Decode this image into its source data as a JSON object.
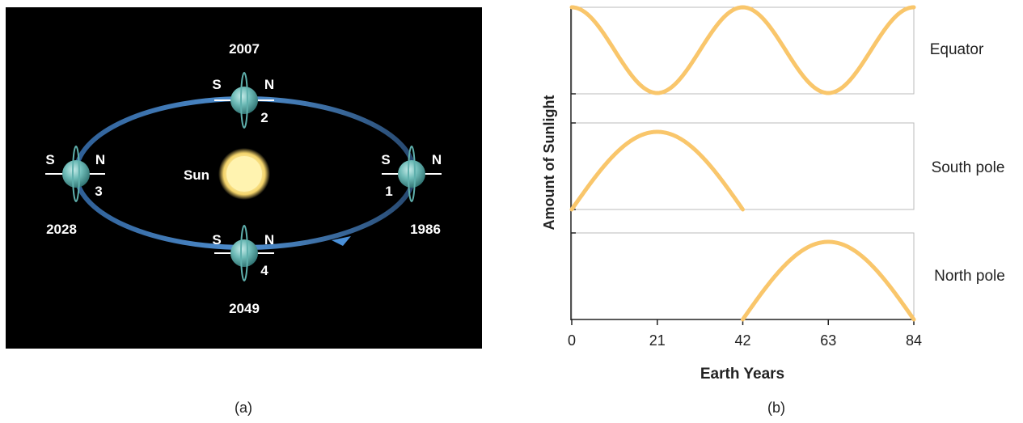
{
  "panel_a": {
    "caption": "(a)",
    "sun_label": "Sun",
    "positions": [
      {
        "number": "1",
        "year": "1986",
        "south": "S",
        "north": "N"
      },
      {
        "number": "2",
        "year": "2007",
        "south": "S",
        "north": "N"
      },
      {
        "number": "3",
        "year": "2028",
        "south": "S",
        "north": "N"
      },
      {
        "number": "4",
        "year": "2049",
        "south": "S",
        "north": "N"
      }
    ],
    "colors": {
      "background": "#000000",
      "orbit": "#3f7dc0",
      "planet": "#5fb0ad",
      "sun": "#fff1a8"
    }
  },
  "panel_b": {
    "caption": "(b)",
    "ylabel": "Amount of Sunlight",
    "xlabel": "Earth Years",
    "curve_color": "#f9c66b",
    "chart_data": {
      "type": "line",
      "xlabel": "Earth Years",
      "ylabel": "Amount of Sunlight",
      "xlim": [
        0,
        84
      ],
      "xticks": [
        "0",
        "21",
        "42",
        "63",
        "84"
      ],
      "series": [
        {
          "name": "Equator",
          "x": [
            0,
            21,
            42,
            63,
            84
          ],
          "y": [
            1,
            0,
            1,
            0,
            1
          ],
          "shape": "cosine"
        },
        {
          "name": "South pole",
          "x": [
            0,
            21,
            42
          ],
          "y": [
            0,
            1,
            0
          ],
          "shape": "half-sine"
        },
        {
          "name": "North pole",
          "x": [
            42,
            63,
            84
          ],
          "y": [
            0,
            1,
            0
          ],
          "shape": "half-sine"
        }
      ]
    }
  }
}
